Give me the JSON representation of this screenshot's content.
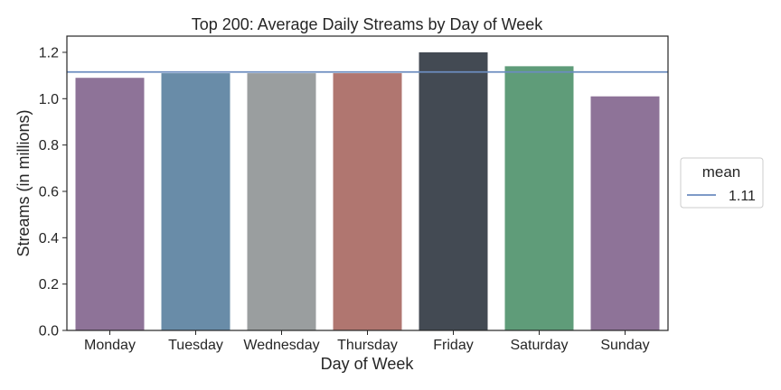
{
  "chart_data": {
    "type": "bar",
    "title": "Top 200: Average Daily Streams by Day of Week",
    "xlabel": "Day of Week",
    "ylabel": "Streams (in millions)",
    "categories": [
      "Monday",
      "Tuesday",
      "Wednesday",
      "Thursday",
      "Friday",
      "Saturday",
      "Sunday"
    ],
    "values": [
      1.09,
      1.11,
      1.11,
      1.11,
      1.2,
      1.14,
      1.01
    ],
    "bar_colors": [
      "#8e7398",
      "#698ca8",
      "#9a9e9f",
      "#b07670",
      "#434a53",
      "#5f9c79",
      "#8e7398"
    ],
    "ylim": [
      0,
      1.27
    ],
    "yticks": [
      "0.0",
      "0.2",
      "0.4",
      "0.6",
      "0.8",
      "1.0",
      "1.2"
    ],
    "grid": false,
    "mean_line": {
      "value": 1.115,
      "color": "#6b8cbf"
    },
    "legend": {
      "title": "mean",
      "entries": [
        "1.11"
      ],
      "placement": "right"
    }
  }
}
